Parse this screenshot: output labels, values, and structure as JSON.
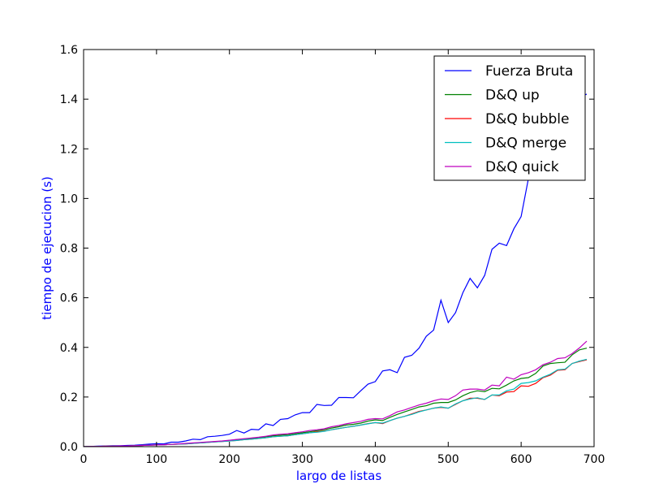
{
  "chart_data": {
    "type": "line",
    "title": "",
    "xlabel": "largo de listas",
    "ylabel": "tiempo de ejecucion (s)",
    "label_color": "#0000ff",
    "xlim": [
      0,
      700
    ],
    "ylim": [
      0,
      1.6
    ],
    "xticks": [
      0,
      100,
      200,
      300,
      400,
      500,
      600,
      700
    ],
    "xtick_labels": [
      "0",
      "100",
      "200",
      "300",
      "400",
      "500",
      "600",
      "700"
    ],
    "yticks": [
      0,
      0.2,
      0.4,
      0.6,
      0.8,
      1.0,
      1.2,
      1.4,
      1.6
    ],
    "ytick_labels": [
      "0.0",
      "0.2",
      "0.4",
      "0.6",
      "0.8",
      "1.0",
      "1.2",
      "1.4",
      "1.6"
    ],
    "grid": false,
    "legend_position": "top-right",
    "x": [
      0,
      10,
      20,
      30,
      40,
      50,
      60,
      70,
      80,
      90,
      100,
      110,
      120,
      130,
      140,
      150,
      160,
      170,
      180,
      190,
      200,
      210,
      220,
      230,
      240,
      250,
      260,
      270,
      280,
      290,
      300,
      310,
      320,
      330,
      340,
      350,
      360,
      370,
      380,
      390,
      400,
      410,
      420,
      430,
      440,
      450,
      460,
      470,
      480,
      490,
      500,
      510,
      520,
      530,
      540,
      550,
      560,
      570,
      580,
      590,
      600,
      610,
      620,
      630,
      640,
      650,
      660,
      670,
      680,
      690
    ],
    "series": [
      {
        "name": "Fuerza Bruta",
        "color": "#0000ff",
        "values": [
          0.0,
          0.001,
          0.002,
          0.003,
          0.004,
          0.004,
          0.005,
          0.006,
          0.008,
          0.01,
          0.012,
          0.011,
          0.018,
          0.018,
          0.023,
          0.03,
          0.028,
          0.04,
          0.042,
          0.045,
          0.05,
          0.065,
          0.055,
          0.07,
          0.068,
          0.092,
          0.085,
          0.11,
          0.113,
          0.128,
          0.137,
          0.137,
          0.17,
          0.166,
          0.167,
          0.198,
          0.198,
          0.197,
          0.225,
          0.252,
          0.262,
          0.305,
          0.31,
          0.298,
          0.36,
          0.368,
          0.397,
          0.445,
          0.47,
          0.59,
          0.5,
          0.54,
          0.62,
          0.678,
          0.64,
          0.69,
          0.795,
          0.82,
          0.81,
          0.878,
          0.927,
          1.08,
          1.15,
          1.2,
          1.25,
          1.3,
          1.35,
          1.38,
          1.41,
          1.42
        ]
      },
      {
        "name": "D&Q up",
        "color": "#008000",
        "values": [
          0.0,
          0.001,
          0.001,
          0.002,
          0.002,
          0.003,
          0.003,
          0.004,
          0.005,
          0.006,
          0.007,
          0.008,
          0.009,
          0.01,
          0.012,
          0.014,
          0.016,
          0.018,
          0.02,
          0.022,
          0.025,
          0.028,
          0.03,
          0.033,
          0.036,
          0.04,
          0.044,
          0.046,
          0.048,
          0.052,
          0.056,
          0.06,
          0.064,
          0.068,
          0.075,
          0.08,
          0.087,
          0.09,
          0.095,
          0.103,
          0.108,
          0.105,
          0.118,
          0.13,
          0.14,
          0.15,
          0.16,
          0.165,
          0.175,
          0.178,
          0.178,
          0.188,
          0.205,
          0.218,
          0.225,
          0.222,
          0.235,
          0.233,
          0.248,
          0.265,
          0.275,
          0.278,
          0.295,
          0.325,
          0.335,
          0.338,
          0.34,
          0.37,
          0.39,
          0.397
        ]
      },
      {
        "name": "D&Q bubble",
        "color": "#ff0000",
        "values": [
          0.0,
          0.001,
          0.001,
          0.002,
          0.002,
          0.003,
          0.003,
          0.004,
          0.005,
          0.006,
          0.007,
          0.008,
          0.009,
          0.01,
          0.011,
          0.013,
          0.015,
          0.017,
          0.019,
          0.021,
          0.023,
          0.025,
          0.028,
          0.03,
          0.033,
          0.036,
          0.04,
          0.042,
          0.044,
          0.048,
          0.052,
          0.056,
          0.06,
          0.063,
          0.068,
          0.073,
          0.078,
          0.082,
          0.087,
          0.093,
          0.097,
          0.093,
          0.105,
          0.115,
          0.122,
          0.132,
          0.142,
          0.148,
          0.155,
          0.158,
          0.155,
          0.17,
          0.185,
          0.195,
          0.195,
          0.19,
          0.208,
          0.205,
          0.22,
          0.222,
          0.245,
          0.243,
          0.255,
          0.278,
          0.288,
          0.308,
          0.31,
          0.335,
          0.343,
          0.35
        ]
      },
      {
        "name": "D&Q merge",
        "color": "#00bfbf",
        "values": [
          0.0,
          0.001,
          0.001,
          0.002,
          0.002,
          0.003,
          0.003,
          0.004,
          0.005,
          0.006,
          0.007,
          0.008,
          0.009,
          0.01,
          0.011,
          0.013,
          0.015,
          0.017,
          0.019,
          0.021,
          0.023,
          0.025,
          0.028,
          0.03,
          0.033,
          0.036,
          0.04,
          0.042,
          0.044,
          0.048,
          0.052,
          0.056,
          0.058,
          0.062,
          0.068,
          0.073,
          0.078,
          0.082,
          0.087,
          0.092,
          0.097,
          0.095,
          0.105,
          0.115,
          0.122,
          0.13,
          0.14,
          0.148,
          0.155,
          0.16,
          0.155,
          0.172,
          0.185,
          0.192,
          0.197,
          0.19,
          0.208,
          0.208,
          0.225,
          0.232,
          0.255,
          0.258,
          0.265,
          0.28,
          0.292,
          0.31,
          0.312,
          0.335,
          0.345,
          0.352
        ]
      },
      {
        "name": "D&Q quick",
        "color": "#bf00bf",
        "values": [
          0.0,
          0.001,
          0.001,
          0.002,
          0.002,
          0.003,
          0.003,
          0.004,
          0.005,
          0.006,
          0.007,
          0.008,
          0.009,
          0.011,
          0.013,
          0.015,
          0.017,
          0.019,
          0.021,
          0.023,
          0.026,
          0.029,
          0.032,
          0.035,
          0.038,
          0.042,
          0.047,
          0.05,
          0.052,
          0.056,
          0.06,
          0.065,
          0.068,
          0.072,
          0.08,
          0.085,
          0.092,
          0.097,
          0.102,
          0.11,
          0.113,
          0.112,
          0.125,
          0.14,
          0.148,
          0.158,
          0.168,
          0.175,
          0.185,
          0.192,
          0.19,
          0.205,
          0.228,
          0.232,
          0.232,
          0.228,
          0.248,
          0.245,
          0.28,
          0.272,
          0.29,
          0.298,
          0.31,
          0.33,
          0.34,
          0.355,
          0.358,
          0.375,
          0.398,
          0.425
        ]
      }
    ]
  }
}
